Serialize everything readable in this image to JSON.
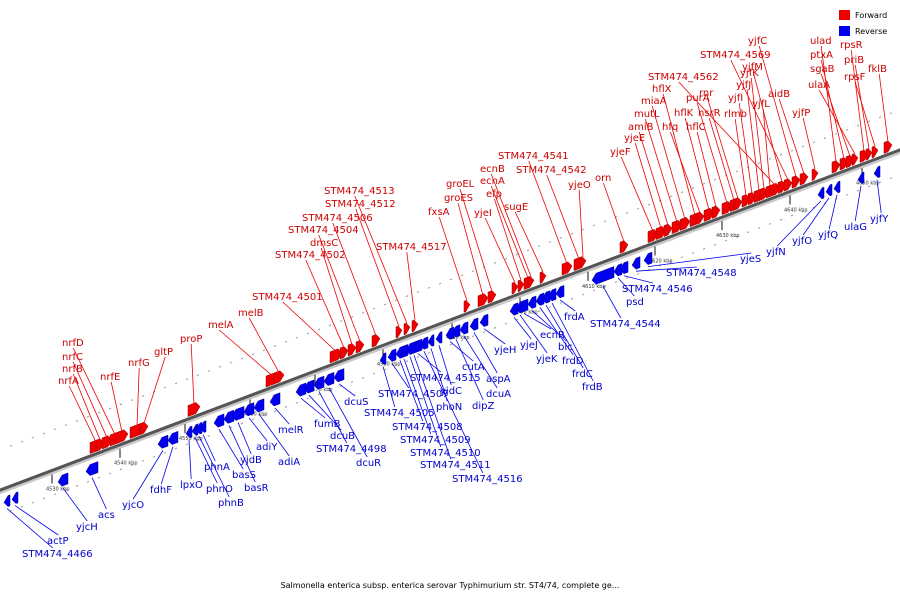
{
  "caption": "Salmonella enterica subsp. enterica serovar Typhimurium str. ST4/74, complete ge...",
  "legend": {
    "forward_label": "Forward",
    "reverse_label": "Reverse",
    "forward_color": "#ee0000",
    "reverse_color": "#0000ee"
  },
  "kbp_ticks": [
    "4530 kbp",
    "4540 kbp",
    "4550 kbp",
    "4560 kbp",
    "4570 kbp",
    "4580 kbp",
    "4590 kbp",
    "4600 kbp",
    "4610 kbp",
    "4620 kbp",
    "4630 kbp",
    "4640 kbp",
    "4650 kbp"
  ],
  "forward_genes": [
    "nrfA",
    "nrfB",
    "nrfC",
    "nrfD",
    "nrfE",
    "nrfG",
    "gltP",
    "proP",
    "melA",
    "melB",
    "STM474_4501",
    "STM474_4502",
    "dmsC",
    "STM474_4504",
    "STM474_4506",
    "STM474_4512",
    "STM474_4513",
    "STM474_4517",
    "fxsA",
    "groES",
    "groEL",
    "yjeI",
    "efp",
    "ecnA",
    "ecnB",
    "sugE",
    "STM474_4541",
    "STM474_4542",
    "yjeO",
    "orn",
    "yjeF",
    "yjeE",
    "amiB",
    "mutL",
    "miaA",
    "hflX",
    "hfq",
    "hflK",
    "hflC",
    "purA",
    "nsrR",
    "rnr",
    "rlmb",
    "yjfI",
    "yjfJ",
    "yjfK",
    "yjfL",
    "STM474_4562",
    "yjfM",
    "STM474_4569",
    "yjfC",
    "aidB",
    "yjfP",
    "ulad",
    "ptxA",
    "sgaB",
    "ulaA",
    "rpsR",
    "priB",
    "rpsF",
    "fklB"
  ],
  "reverse_genes": [
    "STM474_4466",
    "actP",
    "yjcH",
    "acs",
    "yjcO",
    "fdhF",
    "lpxO",
    "phnO",
    "phnB",
    "phnA",
    "basS",
    "basR",
    "yjdB",
    "adiY",
    "adiA",
    "melR",
    "fumB",
    "dcuB",
    "STM474_4498",
    "dcuR",
    "dcuS",
    "STM474_4505",
    "STM474_4507",
    "STM474_4508",
    "STM474_4509",
    "STM474_4510",
    "STM474_4511",
    "STM474_4515",
    "STM474_4516",
    "phoN",
    "yjdC",
    "cutA",
    "dipZ",
    "dcuA",
    "aspA",
    "yjeH",
    "yjeJ",
    "yjeK",
    "ecnR",
    "blc",
    "frdD",
    "frdC",
    "frdB",
    "frdA",
    "STM474_4544",
    "psd",
    "STM474_4546",
    "STM474_4548",
    "yjeS",
    "yjfN",
    "yjfO",
    "yjfQ",
    "ulaG",
    "yjfY"
  ]
}
